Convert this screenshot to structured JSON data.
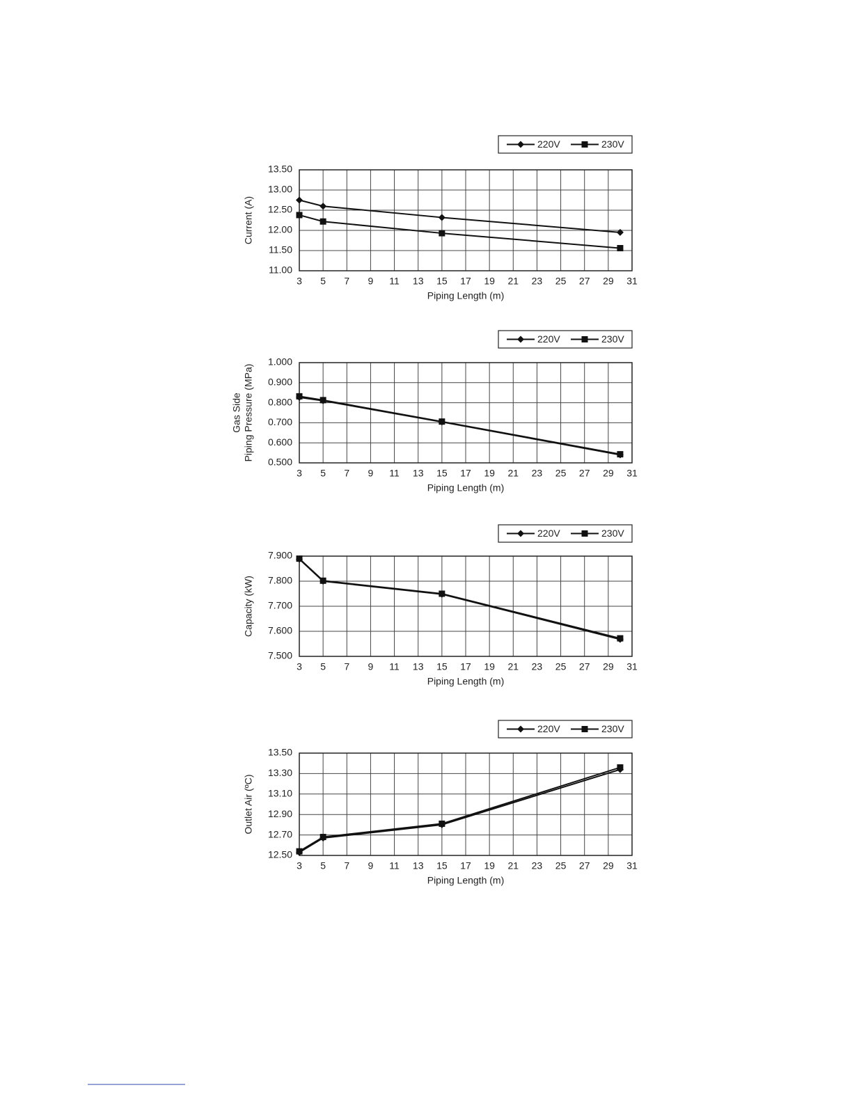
{
  "chart_data": [
    {
      "type": "line",
      "ylabel": "Current (A)",
      "xlabel": "Piping Length (m)",
      "x": [
        3,
        5,
        15,
        30
      ],
      "series": [
        {
          "name": "220V",
          "color": "#111111",
          "marker": "diamond",
          "values": [
            12.75,
            12.6,
            12.32,
            11.95
          ]
        },
        {
          "name": "230V",
          "color": "#111111",
          "marker": "square",
          "values": [
            12.38,
            12.22,
            11.93,
            11.56
          ]
        }
      ],
      "xlim": [
        3,
        31
      ],
      "xticks": [
        3,
        5,
        7,
        9,
        11,
        13,
        15,
        17,
        19,
        21,
        23,
        25,
        27,
        29,
        31
      ],
      "ylim": [
        11,
        13.5
      ],
      "yticks": [
        {
          "value": 11,
          "label": "11.00"
        },
        {
          "value": 11.5,
          "label": "11.50"
        },
        {
          "value": 12,
          "label": "12.00"
        },
        {
          "value": 12.5,
          "label": "12.50"
        },
        {
          "value": 13,
          "label": "13.00"
        },
        {
          "value": 13.5,
          "label": "13.50"
        }
      ],
      "grid": true,
      "legend": "top-right"
    },
    {
      "type": "line",
      "ylabel": [
        "Gas Side",
        "Piping Pressure (MPa)"
      ],
      "xlabel": "Piping Length (m)",
      "x": [
        3,
        5,
        15,
        30
      ],
      "series": [
        {
          "name": "220V",
          "color": "#111111",
          "marker": "diamond",
          "values": [
            0.827,
            0.81,
            0.704,
            0.54
          ]
        },
        {
          "name": "230V",
          "color": "#111111",
          "marker": "square",
          "values": [
            0.832,
            0.813,
            0.706,
            0.543
          ]
        }
      ],
      "xlim": [
        3,
        31
      ],
      "xticks": [
        3,
        5,
        7,
        9,
        11,
        13,
        15,
        17,
        19,
        21,
        23,
        25,
        27,
        29,
        31
      ],
      "ylim": [
        0.5,
        1
      ],
      "yticks": [
        {
          "value": 0.5,
          "label": "0.500"
        },
        {
          "value": 0.6,
          "label": "0.600"
        },
        {
          "value": 0.7,
          "label": "0.700"
        },
        {
          "value": 0.8,
          "label": "0.800"
        },
        {
          "value": 0.9,
          "label": "0.900"
        },
        {
          "value": 1,
          "label": "1.000"
        }
      ],
      "grid": true,
      "legend": "top-right"
    },
    {
      "type": "line",
      "ylabel": "Capacity (kW)",
      "xlabel": "Piping Length (m)",
      "x": [
        3,
        5,
        15,
        30
      ],
      "series": [
        {
          "name": "220V",
          "color": "#111111",
          "marker": "diamond",
          "values": [
            7.888,
            7.8,
            7.748,
            7.568
          ]
        },
        {
          "name": "230V",
          "color": "#111111",
          "marker": "square",
          "values": [
            7.89,
            7.802,
            7.75,
            7.572
          ]
        }
      ],
      "xlim": [
        3,
        31
      ],
      "xticks": [
        3,
        5,
        7,
        9,
        11,
        13,
        15,
        17,
        19,
        21,
        23,
        25,
        27,
        29,
        31
      ],
      "ylim": [
        7.5,
        7.9
      ],
      "yticks": [
        {
          "value": 7.5,
          "label": "7.500"
        },
        {
          "value": 7.6,
          "label": "7.600"
        },
        {
          "value": 7.7,
          "label": "7.700"
        },
        {
          "value": 7.8,
          "label": "7.800"
        },
        {
          "value": 7.9,
          "label": "7.900"
        }
      ],
      "grid": true,
      "legend": "top-right"
    },
    {
      "type": "line",
      "ylabel": "Outlet Air (ºC)",
      "xlabel": "Piping Length (m)",
      "x": [
        3,
        5,
        15,
        30
      ],
      "series": [
        {
          "name": "220V",
          "color": "#111111",
          "marker": "diamond",
          "values": [
            12.53,
            12.67,
            12.8,
            13.34
          ]
        },
        {
          "name": "230V",
          "color": "#111111",
          "marker": "square",
          "values": [
            12.54,
            12.68,
            12.81,
            13.36
          ]
        }
      ],
      "xlim": [
        3,
        31
      ],
      "xticks": [
        3,
        5,
        7,
        9,
        11,
        13,
        15,
        17,
        19,
        21,
        23,
        25,
        27,
        29,
        31
      ],
      "ylim": [
        12.5,
        13.5
      ],
      "yticks": [
        {
          "value": 12.5,
          "label": "12.50"
        },
        {
          "value": 12.7,
          "label": "12.70"
        },
        {
          "value": 12.9,
          "label": "12.90"
        },
        {
          "value": 13.1,
          "label": "13.10"
        },
        {
          "value": 13.3,
          "label": "13.30"
        },
        {
          "value": 13.5,
          "label": "13.50"
        }
      ],
      "grid": true,
      "legend": "top-right"
    }
  ]
}
